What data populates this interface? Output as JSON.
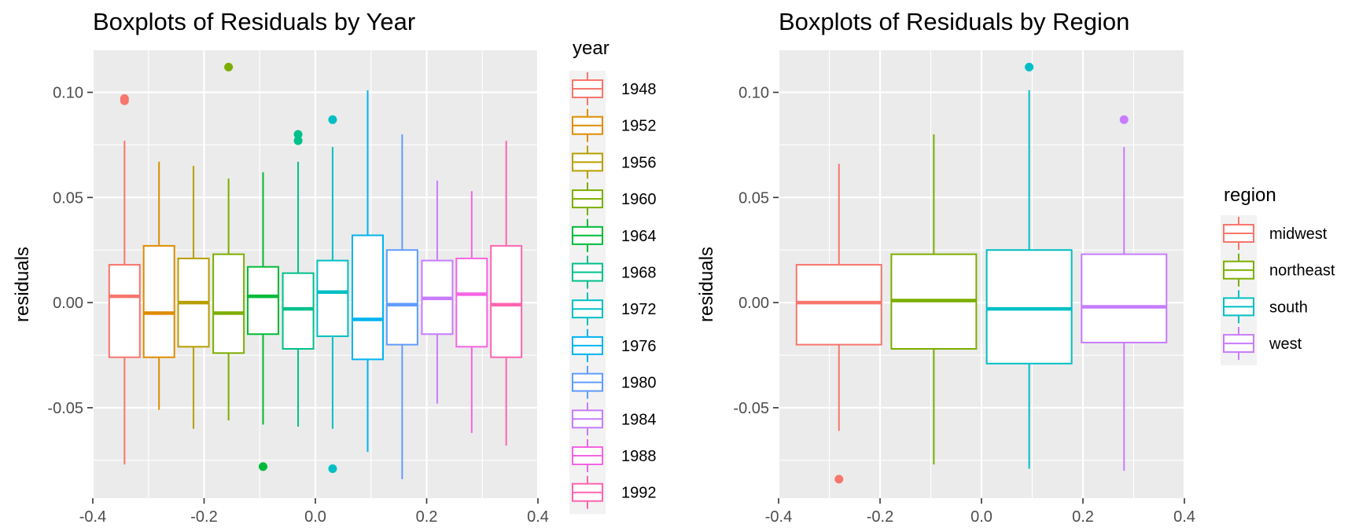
{
  "chart_data": [
    {
      "type": "boxplot",
      "title": "Boxplots of Residuals by Year",
      "xlabel": "",
      "ylabel": "residuals",
      "xlim": [
        -0.4,
        0.4
      ],
      "ylim": [
        -0.093,
        0.12
      ],
      "xticks": [
        "-0.4",
        "-0.2",
        "0.0",
        "0.2",
        "0.4"
      ],
      "yticks": [
        "-0.05",
        "0.00",
        "0.05",
        "0.10"
      ],
      "grid": true,
      "legend": {
        "title": "year",
        "position": "right"
      },
      "series": [
        {
          "name": "1948",
          "color": "#F8766D",
          "x": -0.343,
          "q1": -0.026,
          "median": 0.003,
          "q3": 0.018,
          "whisker_low": -0.077,
          "whisker_high": 0.077,
          "outliers": [
            0.096,
            0.097
          ]
        },
        {
          "name": "1952",
          "color": "#DE8C00",
          "x": -0.281,
          "q1": -0.026,
          "median": -0.005,
          "q3": 0.027,
          "whisker_low": -0.051,
          "whisker_high": 0.067,
          "outliers": []
        },
        {
          "name": "1956",
          "color": "#B79F00",
          "x": -0.219,
          "q1": -0.021,
          "median": 0.0,
          "q3": 0.021,
          "whisker_low": -0.06,
          "whisker_high": 0.065,
          "outliers": []
        },
        {
          "name": "1960",
          "color": "#7CAE00",
          "x": -0.156,
          "q1": -0.024,
          "median": -0.005,
          "q3": 0.023,
          "whisker_low": -0.056,
          "whisker_high": 0.059,
          "outliers": [
            0.112
          ]
        },
        {
          "name": "1964",
          "color": "#00BA38",
          "x": -0.094,
          "q1": -0.015,
          "median": 0.003,
          "q3": 0.017,
          "whisker_low": -0.058,
          "whisker_high": 0.062,
          "outliers": [
            -0.078
          ]
        },
        {
          "name": "1968",
          "color": "#00C08B",
          "x": -0.031,
          "q1": -0.022,
          "median": -0.003,
          "q3": 0.014,
          "whisker_low": -0.059,
          "whisker_high": 0.067,
          "outliers": [
            0.08,
            0.077
          ]
        },
        {
          "name": "1972",
          "color": "#00BFC4",
          "x": 0.031,
          "q1": -0.016,
          "median": 0.005,
          "q3": 0.02,
          "whisker_low": -0.06,
          "whisker_high": 0.074,
          "outliers": [
            0.087,
            -0.079
          ]
        },
        {
          "name": "1976",
          "color": "#00B4F0",
          "x": 0.094,
          "q1": -0.027,
          "median": -0.008,
          "q3": 0.032,
          "whisker_low": -0.071,
          "whisker_high": 0.101,
          "outliers": []
        },
        {
          "name": "1980",
          "color": "#619CFF",
          "x": 0.156,
          "q1": -0.02,
          "median": -0.001,
          "q3": 0.025,
          "whisker_low": -0.084,
          "whisker_high": 0.08,
          "outliers": []
        },
        {
          "name": "1984",
          "color": "#C77CFF",
          "x": 0.219,
          "q1": -0.015,
          "median": 0.002,
          "q3": 0.02,
          "whisker_low": -0.048,
          "whisker_high": 0.058,
          "outliers": []
        },
        {
          "name": "1988",
          "color": "#F564E3",
          "x": 0.281,
          "q1": -0.021,
          "median": 0.004,
          "q3": 0.021,
          "whisker_low": -0.062,
          "whisker_high": 0.053,
          "outliers": []
        },
        {
          "name": "1992",
          "color": "#FF64B0",
          "x": 0.343,
          "q1": -0.026,
          "median": -0.001,
          "q3": 0.027,
          "whisker_low": -0.068,
          "whisker_high": 0.077,
          "outliers": []
        }
      ]
    },
    {
      "type": "boxplot",
      "title": "Boxplots of Residuals by Region",
      "xlabel": "",
      "ylabel": "residuals",
      "xlim": [
        -0.4,
        0.4
      ],
      "ylim": [
        -0.093,
        0.12
      ],
      "xticks": [
        "-0.4",
        "-0.2",
        "0.0",
        "0.2",
        "0.4"
      ],
      "yticks": [
        "-0.05",
        "0.00",
        "0.05",
        "0.10"
      ],
      "grid": true,
      "legend": {
        "title": "region",
        "position": "right"
      },
      "series": [
        {
          "name": "midwest",
          "color": "#F8766D",
          "x": -0.281,
          "q1": -0.02,
          "median": 0.0,
          "q3": 0.018,
          "whisker_low": -0.061,
          "whisker_high": 0.066,
          "outliers": [
            -0.084
          ]
        },
        {
          "name": "northeast",
          "color": "#7CAE00",
          "x": -0.094,
          "q1": -0.022,
          "median": 0.001,
          "q3": 0.023,
          "whisker_low": -0.077,
          "whisker_high": 0.08,
          "outliers": []
        },
        {
          "name": "south",
          "color": "#00BFC4",
          "x": 0.094,
          "q1": -0.029,
          "median": -0.003,
          "q3": 0.025,
          "whisker_low": -0.079,
          "whisker_high": 0.101,
          "outliers": [
            0.112
          ]
        },
        {
          "name": "west",
          "color": "#C77CFF",
          "x": 0.281,
          "q1": -0.019,
          "median": -0.002,
          "q3": 0.023,
          "whisker_low": -0.08,
          "whisker_high": 0.074,
          "outliers": [
            0.087
          ]
        }
      ]
    }
  ]
}
